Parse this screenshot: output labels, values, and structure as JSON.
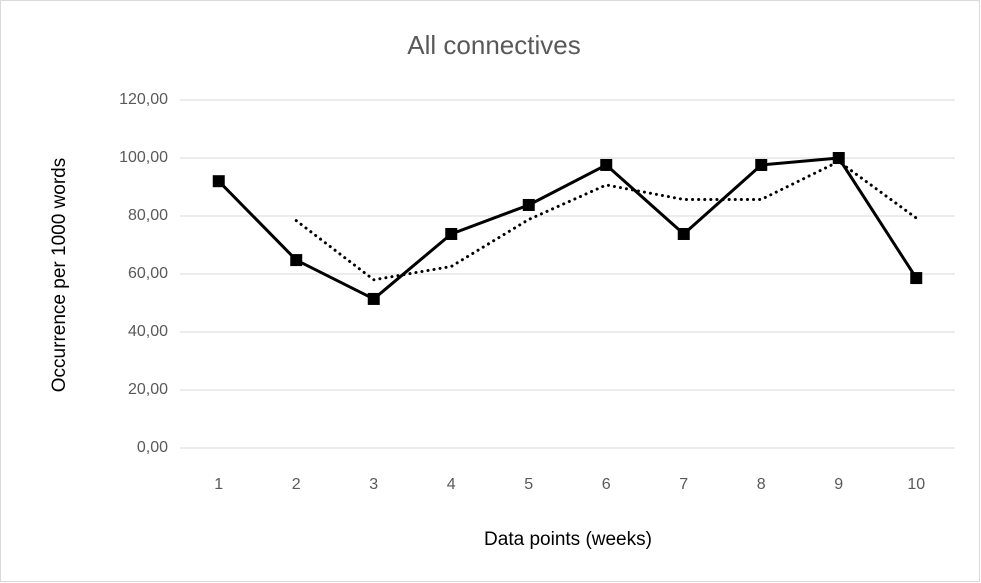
{
  "chart_data": {
    "type": "line",
    "title": "All connectives",
    "x_label": "Data points (weeks)",
    "y_label": "Occurrence per 1000 words",
    "categories": [
      "1",
      "2",
      "3",
      "4",
      "5",
      "6",
      "7",
      "8",
      "9",
      "10"
    ],
    "series": [
      {
        "color": "#000000",
        "style": "solid",
        "marker": "square",
        "values": [
          92,
          64.8,
          51.4,
          73.8,
          83.8,
          97.6,
          73.8,
          97.6,
          100,
          58.6
        ]
      },
      {
        "color": "#000000",
        "style": "dotted",
        "values": [
          null,
          78.4,
          58,
          62.6,
          78.8,
          90.7,
          85.7,
          85.7,
          98.8,
          79.3
        ]
      }
    ],
    "ylim": [
      0,
      120
    ],
    "yticks": [
      {
        "value": 0,
        "label": "0,00"
      },
      {
        "value": 20,
        "label": "20,00"
      },
      {
        "value": 40,
        "label": "40,00"
      },
      {
        "value": 60,
        "label": "60,00"
      },
      {
        "value": 80,
        "label": "80,00"
      },
      {
        "value": 100,
        "label": "100,00"
      },
      {
        "value": 120,
        "label": "120,00"
      }
    ],
    "grid": true
  }
}
